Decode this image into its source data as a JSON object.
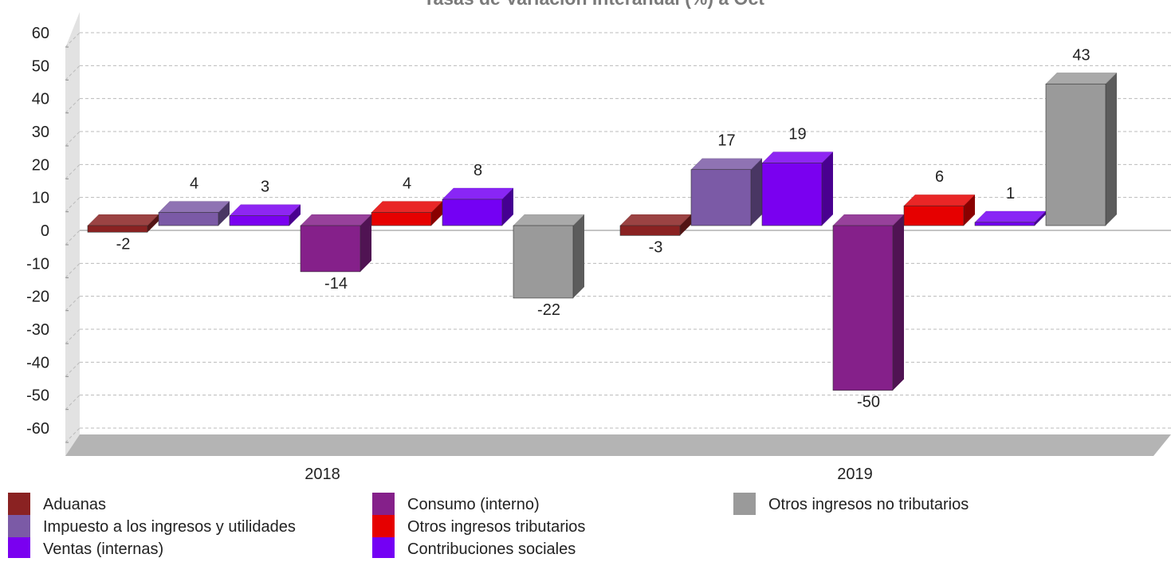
{
  "chart_data": {
    "type": "bar3d",
    "title": "Tasas de Variación Interanual (%) a Oct",
    "categories": [
      "2018",
      "2019"
    ],
    "series": [
      {
        "name": "Aduanas",
        "color": "#8a2222",
        "values": [
          -2,
          -3
        ]
      },
      {
        "name": "Impuesto a los ingresos y utilidades",
        "color": "#7b5aa6",
        "values": [
          4,
          17
        ]
      },
      {
        "name": "Ventas (internas)",
        "color": "#7a00f0",
        "values": [
          3,
          19
        ]
      },
      {
        "name": "Consumo (interno)",
        "color": "#85208a",
        "values": [
          -14,
          -50
        ]
      },
      {
        "name": "Otros ingresos tributarios",
        "color": "#e60000",
        "values": [
          4,
          6
        ]
      },
      {
        "name": "Contribuciones sociales",
        "color": "#7400f4",
        "values": [
          8,
          1
        ]
      },
      {
        "name": "Otros ingresos no tributarios",
        "color": "#9a9a9a",
        "values": [
          -22,
          43
        ]
      }
    ],
    "ylim": [
      -60,
      60
    ],
    "yticks": [
      -60,
      -50,
      -40,
      -30,
      -20,
      -10,
      0,
      10,
      20,
      30,
      40,
      50,
      60
    ],
    "grid": true
  }
}
